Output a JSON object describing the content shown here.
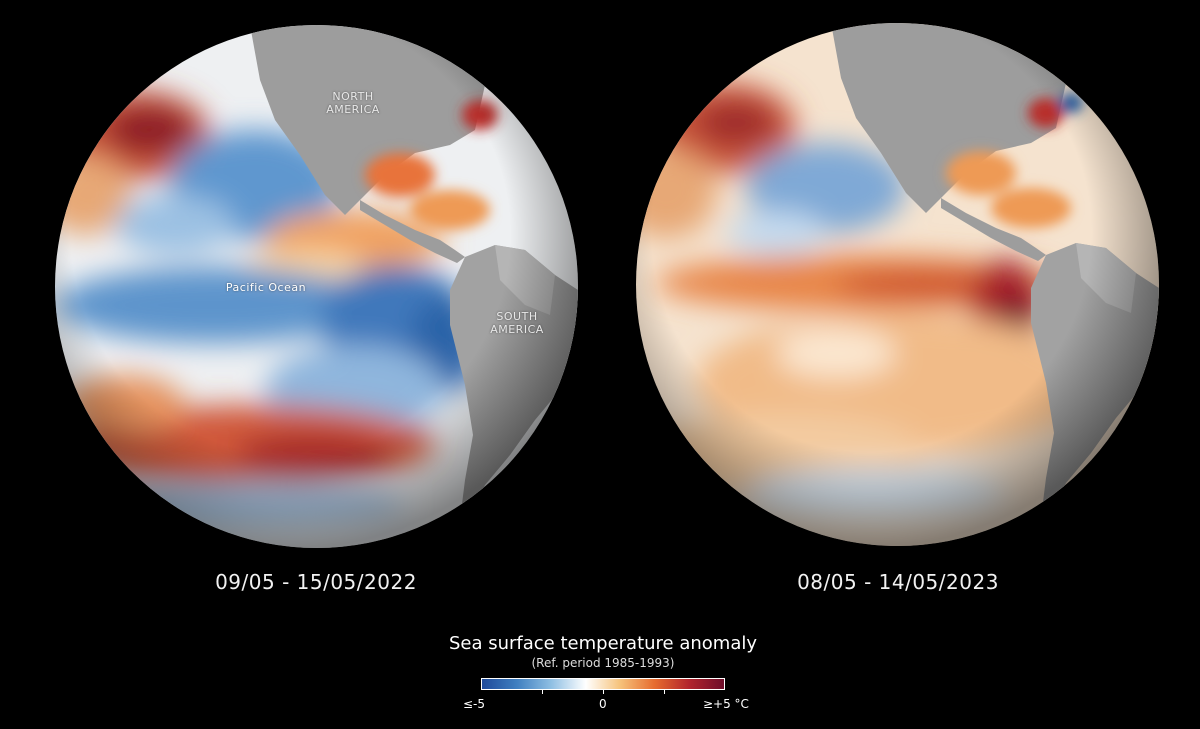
{
  "panels": [
    {
      "date": "09/05 - 15/05/2022"
    },
    {
      "date": "08/05 - 14/05/2023"
    }
  ],
  "map_labels": {
    "north_america": "NORTH AMERICA",
    "south_america": "SOUTH AMERICA",
    "pacific_ocean": "Pacific Ocean"
  },
  "legend": {
    "title": "Sea surface temperature anomaly",
    "subtitle": "(Ref. period 1985-1993)",
    "min_label": "≤-5",
    "zero_label": "0",
    "max_label": "≥+5 °C",
    "colors": [
      "#1f4a9a",
      "#3f7fc0",
      "#8fbfe3",
      "#ffffff",
      "#f6c27a",
      "#e66b2f",
      "#b1242d",
      "#6e0d2a"
    ]
  }
}
